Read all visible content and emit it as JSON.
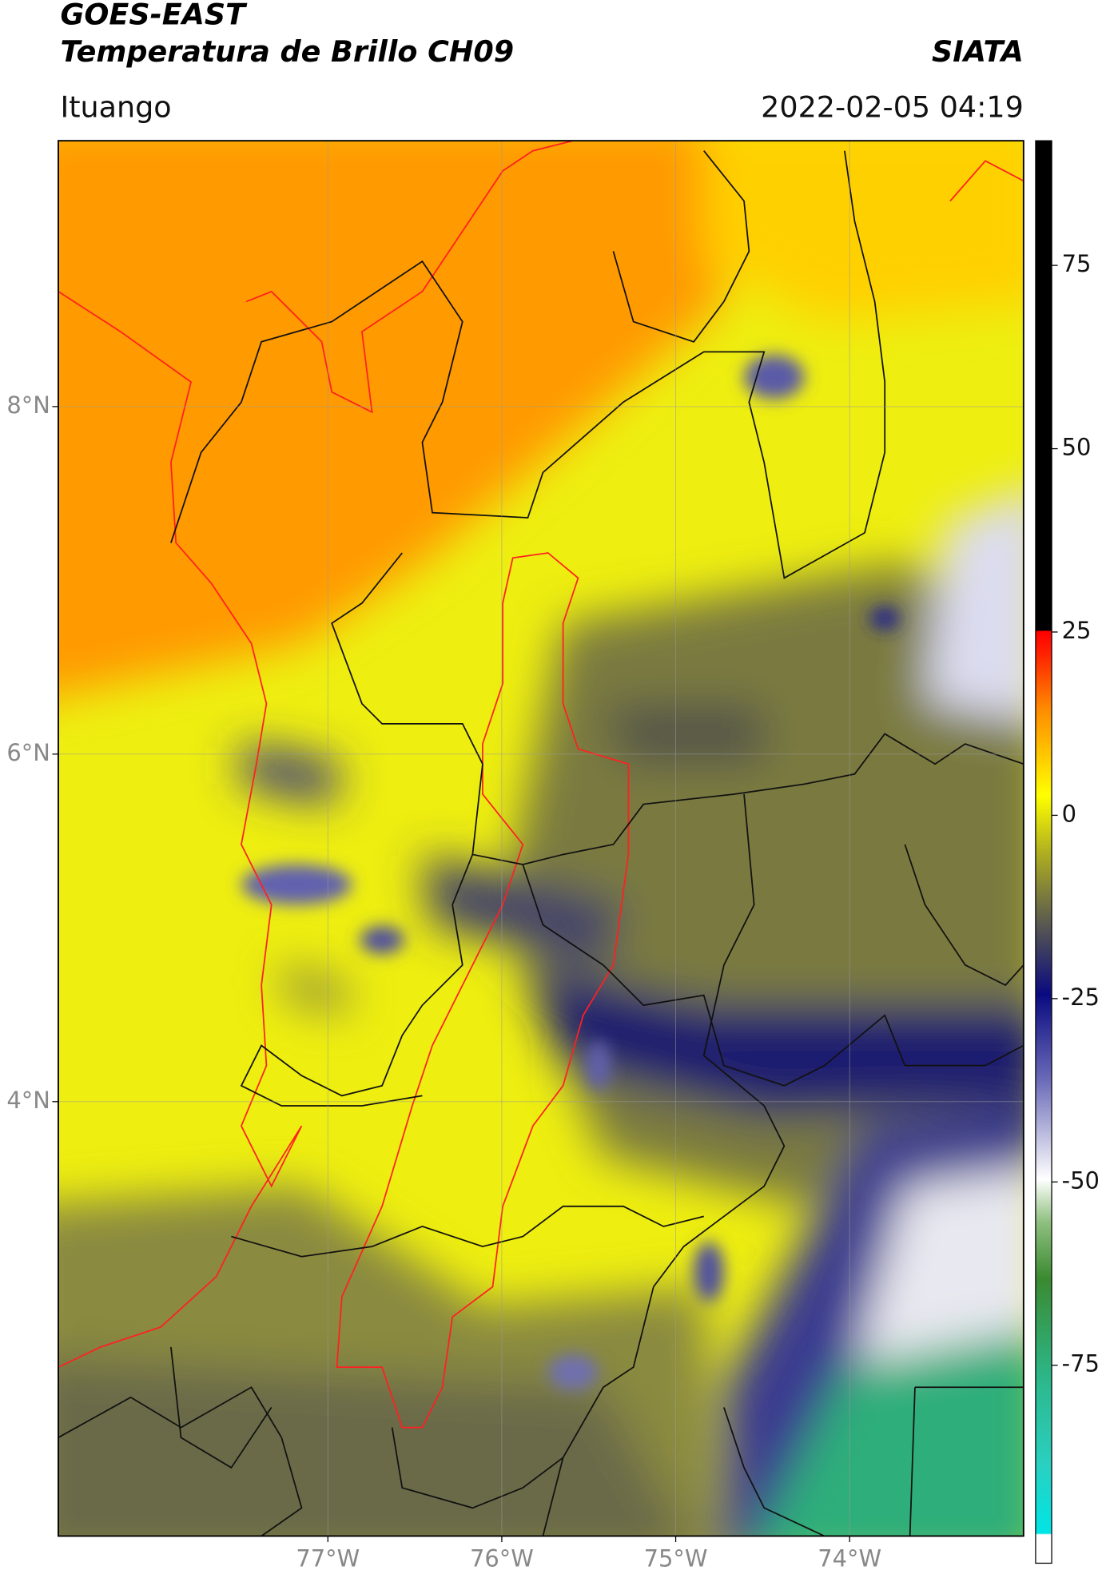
{
  "header": {
    "title": "GOES-EAST",
    "subtitle": "Temperatura de Brillo CH09",
    "agency": "SIATA",
    "region": "Ituango",
    "timestamp": "2022-02-05 04:19"
  },
  "map": {
    "xlim": [
      -78.55,
      -73.0
    ],
    "ylim": [
      1.5,
      9.53
    ],
    "xticks": [
      {
        "value": -77,
        "label": "77°W"
      },
      {
        "value": -76,
        "label": "76°W"
      },
      {
        "value": -75,
        "label": "75°W"
      },
      {
        "value": -74,
        "label": "74°W"
      }
    ],
    "yticks": [
      {
        "value": 8,
        "label": "8°N"
      },
      {
        "value": 6,
        "label": "6°N"
      },
      {
        "value": 4,
        "label": "4°N"
      }
    ],
    "grid": true
  },
  "colorbar": {
    "lim": [
      -102,
      92
    ],
    "ticks": [
      75,
      50,
      25,
      0,
      -25,
      -50,
      -75
    ]
  }
}
